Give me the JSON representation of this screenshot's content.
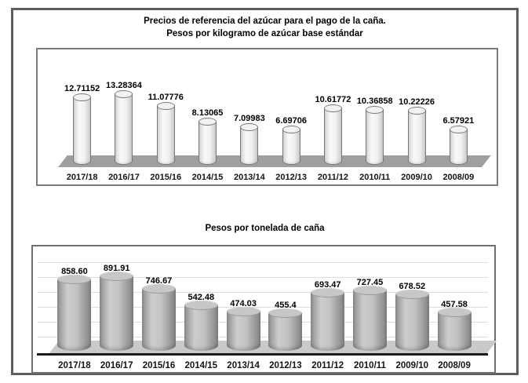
{
  "page_title": {
    "line1": "Precios de referencia del azúcar para el pago de la caña.",
    "line2": "Pesos por kilogramo de azúcar base estándar"
  },
  "chart_data": [
    {
      "type": "bar",
      "bar_style": "3d-cylinder-light",
      "title": "Precios de referencia del azúcar para el pago de la caña. Pesos por kilogramo de azúcar base estándar",
      "categories": [
        "2017/18",
        "2016/17",
        "2015/16",
        "2014/15",
        "2013/14",
        "2012/13",
        "2011/12",
        "2010/11",
        "2009/10",
        "2008/09"
      ],
      "values": [
        12.71152,
        13.28364,
        11.07776,
        8.13065,
        7.09983,
        6.69706,
        10.61772,
        10.36858,
        10.22226,
        6.57921
      ],
      "value_labels": [
        "12.71152",
        "13.28364",
        "11.07776",
        "8.13065",
        "7.09983",
        "6.69706",
        "10.61772",
        "10.36858",
        "10.22226",
        "6.57921"
      ],
      "ylabel": "Pesos por kilogramo de azúcar base estándar",
      "ylim": [
        0,
        14
      ],
      "grid": false,
      "legend": "none",
      "data_labels": "above-bars"
    },
    {
      "type": "bar",
      "bar_style": "3d-cylinder-dark",
      "title": "Pesos por tonelada de caña",
      "categories": [
        "2017/18",
        "2016/17",
        "2015/16",
        "2014/15",
        "2013/14",
        "2012/13",
        "2011/12",
        "2010/11",
        "2009/10",
        "2008/09"
      ],
      "values": [
        858.6,
        891.91,
        746.67,
        542.48,
        474.03,
        455.4,
        693.47,
        727.45,
        678.52,
        457.58
      ],
      "value_labels": [
        "858.60",
        "891.91",
        "746.67",
        "542.48",
        "474.03",
        "455.4",
        "693.47",
        "727.45",
        "678.52",
        "457.58"
      ],
      "ylabel": "Pesos por tonelada de caña",
      "ylim": [
        0,
        950
      ],
      "grid": true,
      "legend": "none",
      "data_labels": "above-bars"
    }
  ],
  "colors": {
    "frame_border": "#5d5d5d",
    "box_border": "#7c7c7c",
    "light_cylinder_fill": "#f1f1f1",
    "light_cylinder_outline": "#787878",
    "dark_cylinder_fill": "#b5b5b5",
    "floor_top_chart": "#9f9f9f",
    "floor_bottom_chart": "#c9c9c9",
    "baseline": "#1a1a1a",
    "gridline": "#dedede",
    "text": "#000000"
  }
}
